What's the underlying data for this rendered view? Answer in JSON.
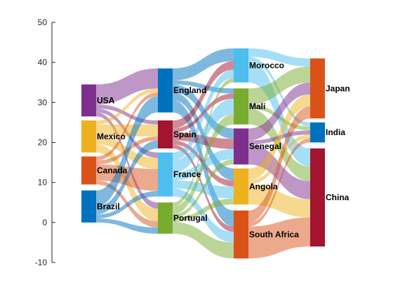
{
  "chart_data": {
    "type": "sankey",
    "title": "",
    "ylim": [
      -10,
      50
    ],
    "yticks": [
      -10,
      0,
      10,
      20,
      30,
      40,
      50
    ],
    "grid": false,
    "columns": [
      [
        {
          "id": "usa",
          "label": "USA",
          "color": "#7E2F8E",
          "top": 34.5,
          "bottom": 26.5
        },
        {
          "id": "mexico",
          "label": "Mexico",
          "color": "#EDB120",
          "top": 25.5,
          "bottom": 17.5
        },
        {
          "id": "canada",
          "label": "Canada",
          "color": "#D95319",
          "top": 16.5,
          "bottom": 9.5
        },
        {
          "id": "brazil",
          "label": "Brazil",
          "color": "#0072BD",
          "top": 8.0,
          "bottom": 0.0
        }
      ],
      [
        {
          "id": "england",
          "label": "England",
          "color": "#0072BD",
          "top": 38.5,
          "bottom": 27.5
        },
        {
          "id": "spain",
          "label": "Spain",
          "color": "#A2142F",
          "top": 25.5,
          "bottom": 18.5
        },
        {
          "id": "france",
          "label": "France",
          "color": "#4DBEEE",
          "top": 17.5,
          "bottom": 6.5
        },
        {
          "id": "portugal",
          "label": "Portugal",
          "color": "#77AC30",
          "top": 5.0,
          "bottom": -2.8
        }
      ],
      [
        {
          "id": "morocco",
          "label": "Morocco",
          "color": "#4DBEEE",
          "top": 43.5,
          "bottom": 35.0
        },
        {
          "id": "mali",
          "label": "Mali",
          "color": "#77AC30",
          "top": 33.5,
          "bottom": 24.5
        },
        {
          "id": "senegal",
          "label": "Senegal",
          "color": "#7E2F8E",
          "top": 23.5,
          "bottom": 14.5
        },
        {
          "id": "angola",
          "label": "Angola",
          "color": "#EDB120",
          "top": 13.5,
          "bottom": 4.5
        },
        {
          "id": "south-africa",
          "label": "South Africa",
          "color": "#D95319",
          "top": 3.0,
          "bottom": -9.0
        }
      ],
      [
        {
          "id": "japan",
          "label": "Japan",
          "color": "#D95319",
          "top": 41.0,
          "bottom": 26.0
        },
        {
          "id": "india",
          "label": "India",
          "color": "#0072BD",
          "top": 25.0,
          "bottom": 20.0
        },
        {
          "id": "china",
          "label": "China",
          "color": "#A2142F",
          "top": 18.5,
          "bottom": -6.0
        }
      ]
    ],
    "links": [
      {
        "source": "usa",
        "target": "england",
        "value": 5
      },
      {
        "source": "usa",
        "target": "spain",
        "value": 1
      },
      {
        "source": "usa",
        "target": "france",
        "value": 1
      },
      {
        "source": "usa",
        "target": "portugal",
        "value": 1
      },
      {
        "source": "mexico",
        "target": "england",
        "value": 1
      },
      {
        "source": "mexico",
        "target": "spain",
        "value": 3
      },
      {
        "source": "mexico",
        "target": "france",
        "value": 2
      },
      {
        "source": "mexico",
        "target": "portugal",
        "value": 2
      },
      {
        "source": "canada",
        "target": "england",
        "value": 1
      },
      {
        "source": "canada",
        "target": "spain",
        "value": 1
      },
      {
        "source": "canada",
        "target": "france",
        "value": 4
      },
      {
        "source": "canada",
        "target": "portugal",
        "value": 1
      },
      {
        "source": "brazil",
        "target": "england",
        "value": 4
      },
      {
        "source": "brazil",
        "target": "spain",
        "value": 2
      },
      {
        "source": "brazil",
        "target": "france",
        "value": 1
      },
      {
        "source": "brazil",
        "target": "portugal",
        "value": 1
      },
      {
        "source": "england",
        "target": "morocco",
        "value": 3
      },
      {
        "source": "england",
        "target": "mali",
        "value": 1
      },
      {
        "source": "england",
        "target": "senegal",
        "value": 2
      },
      {
        "source": "england",
        "target": "angola",
        "value": 2
      },
      {
        "source": "england",
        "target": "south-africa",
        "value": 3
      },
      {
        "source": "spain",
        "target": "morocco",
        "value": 2
      },
      {
        "source": "spain",
        "target": "mali",
        "value": 1
      },
      {
        "source": "spain",
        "target": "senegal",
        "value": 2
      },
      {
        "source": "spain",
        "target": "angola",
        "value": 1
      },
      {
        "source": "spain",
        "target": "south-africa",
        "value": 1
      },
      {
        "source": "france",
        "target": "morocco",
        "value": 2
      },
      {
        "source": "france",
        "target": "mali",
        "value": 3
      },
      {
        "source": "france",
        "target": "senegal",
        "value": 2
      },
      {
        "source": "france",
        "target": "angola",
        "value": 2
      },
      {
        "source": "france",
        "target": "south-africa",
        "value": 2
      },
      {
        "source": "portugal",
        "target": "morocco",
        "value": 1
      },
      {
        "source": "portugal",
        "target": "mali",
        "value": 2
      },
      {
        "source": "portugal",
        "target": "senegal",
        "value": 1
      },
      {
        "source": "portugal",
        "target": "angola",
        "value": 1
      },
      {
        "source": "portugal",
        "target": "south-africa",
        "value": 3
      },
      {
        "source": "morocco",
        "target": "japan",
        "value": 2
      },
      {
        "source": "morocco",
        "target": "india",
        "value": 1
      },
      {
        "source": "morocco",
        "target": "china",
        "value": 5
      },
      {
        "source": "mali",
        "target": "japan",
        "value": 4
      },
      {
        "source": "mali",
        "target": "india",
        "value": 1
      },
      {
        "source": "mali",
        "target": "china",
        "value": 4
      },
      {
        "source": "senegal",
        "target": "japan",
        "value": 3
      },
      {
        "source": "senegal",
        "target": "india",
        "value": 1
      },
      {
        "source": "senegal",
        "target": "china",
        "value": 5
      },
      {
        "source": "angola",
        "target": "japan",
        "value": 3
      },
      {
        "source": "angola",
        "target": "india",
        "value": 1
      },
      {
        "source": "angola",
        "target": "china",
        "value": 5
      },
      {
        "source": "south-africa",
        "target": "japan",
        "value": 3
      },
      {
        "source": "south-africa",
        "target": "india",
        "value": 1
      },
      {
        "source": "south-africa",
        "target": "china",
        "value": 8
      }
    ]
  }
}
